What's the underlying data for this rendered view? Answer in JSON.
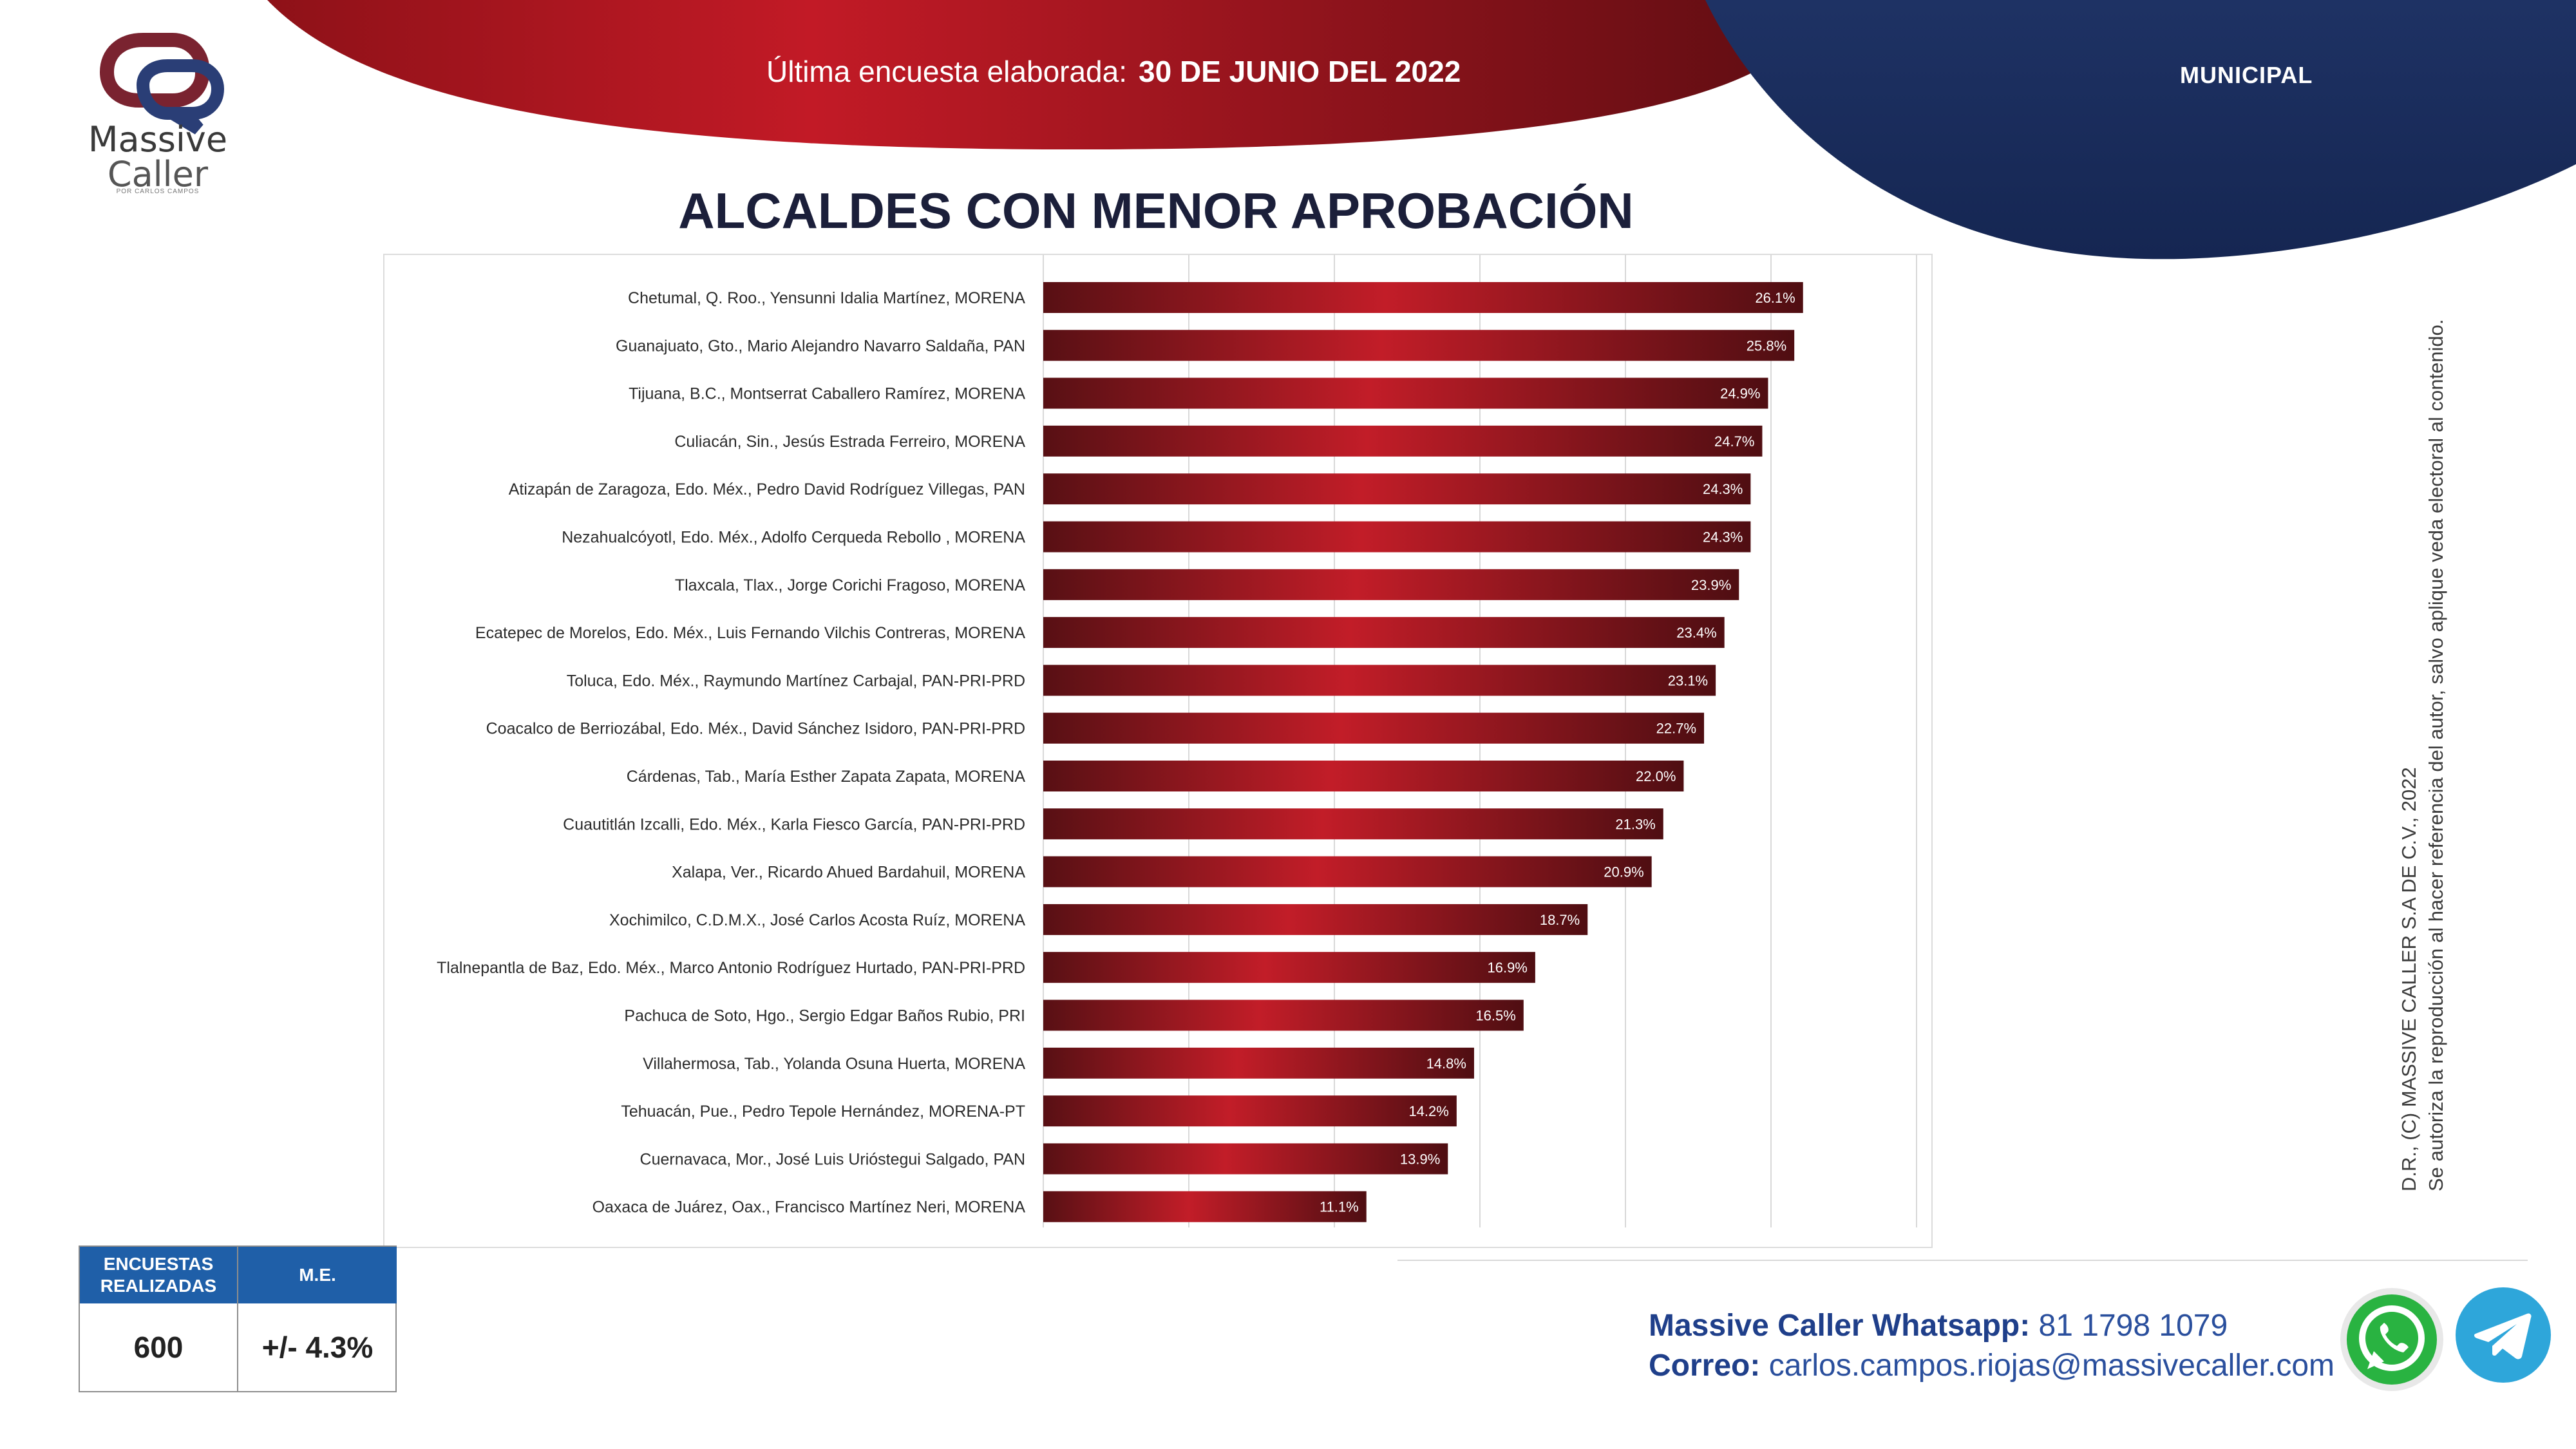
{
  "brand": {
    "name_line1": "Massive",
    "name_line2": "Caller",
    "tagline": "POR CARLOS CAMPOS"
  },
  "header": {
    "survey_label": "Última encuesta elaborada:",
    "survey_date": "30 DE JUNIO DEL 2022",
    "section": "MUNICIPAL"
  },
  "colors": {
    "bar_dark": "#5a1016",
    "bar_bright": "#c4202a",
    "navy": "#1b2c5e",
    "stats_header": "#1f5fa8"
  },
  "chart_data": {
    "type": "bar",
    "orientation": "horizontal",
    "title": "ALCALDES CON MENOR APROBACIÓN",
    "xlim": [
      0,
      30
    ],
    "grid": true,
    "categories": [
      "Chetumal, Q. Roo., Yensunni Idalia Martínez, MORENA",
      "Guanajuato, Gto., Mario Alejandro Navarro Saldaña, PAN",
      "Tijuana, B.C., Montserrat Caballero Ramírez, MORENA",
      "Culiacán, Sin., Jesús Estrada Ferreiro, MORENA",
      "Atizapán de Zaragoza, Edo. Méx., Pedro David Rodríguez Villegas, PAN",
      "Nezahualcóyotl, Edo. Méx., Adolfo Cerqueda Rebollo , MORENA",
      "Tlaxcala, Tlax., Jorge Corichi Fragoso, MORENA",
      "Ecatepec de Morelos, Edo. Méx., Luis Fernando Vilchis Contreras, MORENA",
      "Toluca, Edo. Méx., Raymundo Martínez Carbajal, PAN-PRI-PRD",
      "Coacalco de Berriozábal, Edo. Méx., David Sánchez Isidoro, PAN-PRI-PRD",
      "Cárdenas, Tab., María Esther Zapata Zapata, MORENA",
      "Cuautitlán Izcalli, Edo. Méx., Karla Fiesco García, PAN-PRI-PRD",
      "Xalapa, Ver., Ricardo Ahued Bardahuil, MORENA",
      "Xochimilco, C.D.M.X., José Carlos Acosta Ruíz, MORENA",
      "Tlalnepantla de Baz, Edo. Méx., Marco Antonio Rodríguez Hurtado, PAN-PRI-PRD",
      "Pachuca de Soto, Hgo., Sergio Edgar Baños Rubio, PRI",
      "Villahermosa, Tab., Yolanda Osuna Huerta, MORENA",
      "Tehuacán, Pue., Pedro Tepole Hernández, MORENA-PT",
      "Cuernavaca, Mor., José Luis Urióstegui Salgado, PAN",
      "Oaxaca de Juárez, Oax., Francisco Martínez Neri, MORENA"
    ],
    "values": [
      26.1,
      25.8,
      24.9,
      24.7,
      24.3,
      24.3,
      23.9,
      23.4,
      23.1,
      22.7,
      22.0,
      21.3,
      20.9,
      18.7,
      16.9,
      16.5,
      14.8,
      14.2,
      13.9,
      11.1
    ],
    "value_labels": [
      "26.1%",
      "25.8%",
      "24.9%",
      "24.7%",
      "24.3%",
      "24.3%",
      "23.9%",
      "23.4%",
      "23.1%",
      "22.7%",
      "22.0%",
      "21.3%",
      "20.9%",
      "18.7%",
      "16.9%",
      "16.5%",
      "14.8%",
      "14.2%",
      "13.9%",
      "11.1%"
    ]
  },
  "disclaimer": {
    "line1": "D.R., (C) MASSIVE CALLER S.A DE C.V., 2022",
    "line2": "Se autoriza la reproducción al hacer referencia del autor, salvo aplique veda electoral al contenido."
  },
  "stats": {
    "surveys_header": "ENCUESTAS REALIZADAS",
    "surveys_value": "600",
    "me_header": "M.E.",
    "me_value": "+/- 4.3%"
  },
  "contact": {
    "whatsapp_label": "Massive Caller Whatsapp:",
    "whatsapp_number": "81 1798 1079",
    "email_label": "Correo:",
    "email": "carlos.campos.riojas@massivecaller.com"
  },
  "icons": {
    "whatsapp": "whatsapp-icon",
    "telegram": "telegram-icon"
  }
}
